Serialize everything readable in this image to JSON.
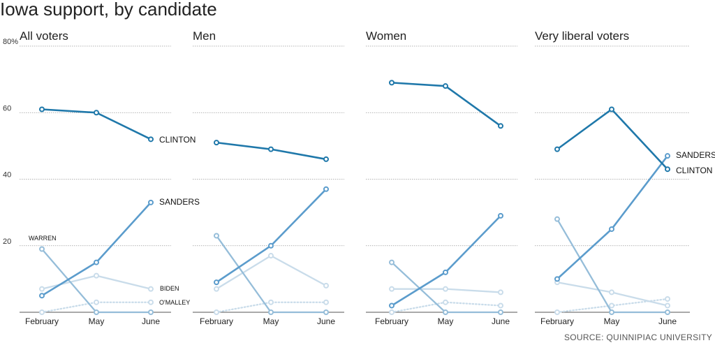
{
  "title": "Iowa support, by candidate",
  "source": "SOURCE: QUINNIPIAC UNIVERSITY",
  "y_unit_label": "80%",
  "colors": {
    "CLINTON": "#1f78aa",
    "SANDERS": "#5b9ccc",
    "WARREN": "#95bdd9",
    "BIDEN": "#c9dcea",
    "O'MALLEY": "#c9dcea"
  },
  "chart_data": [
    {
      "type": "line",
      "title": "All voters",
      "x": [
        "February",
        "May",
        "June"
      ],
      "ylim": [
        0,
        80
      ],
      "yticks": [
        20,
        40,
        60,
        80
      ],
      "grid": true,
      "series": [
        {
          "name": "CLINTON",
          "values": [
            61,
            60,
            52
          ],
          "style": "solid",
          "label": "CLINTON"
        },
        {
          "name": "SANDERS",
          "values": [
            5,
            15,
            33
          ],
          "style": "solid",
          "label": "SANDERS"
        },
        {
          "name": "WARREN",
          "values": [
            19,
            0,
            0
          ],
          "style": "solid",
          "label": "WARREN"
        },
        {
          "name": "BIDEN",
          "values": [
            7,
            11,
            7
          ],
          "style": "solid",
          "label": "BIDEN"
        },
        {
          "name": "O'MALLEY",
          "values": [
            0,
            3,
            3
          ],
          "style": "dotted",
          "label": "O'MALLEY"
        }
      ]
    },
    {
      "type": "line",
      "title": "Men",
      "x": [
        "February",
        "May",
        "June"
      ],
      "ylim": [
        0,
        80
      ],
      "grid": true,
      "series": [
        {
          "name": "CLINTON",
          "values": [
            51,
            49,
            46
          ],
          "style": "solid"
        },
        {
          "name": "SANDERS",
          "values": [
            9,
            20,
            37
          ],
          "style": "solid"
        },
        {
          "name": "WARREN",
          "values": [
            23,
            0,
            0
          ],
          "style": "solid"
        },
        {
          "name": "BIDEN",
          "values": [
            7,
            17,
            8
          ],
          "style": "solid"
        },
        {
          "name": "O'MALLEY",
          "values": [
            0,
            3,
            3
          ],
          "style": "dotted"
        }
      ]
    },
    {
      "type": "line",
      "title": "Women",
      "x": [
        "February",
        "May",
        "June"
      ],
      "ylim": [
        0,
        80
      ],
      "grid": true,
      "series": [
        {
          "name": "CLINTON",
          "values": [
            69,
            68,
            56
          ],
          "style": "solid"
        },
        {
          "name": "SANDERS",
          "values": [
            2,
            12,
            29
          ],
          "style": "solid"
        },
        {
          "name": "WARREN",
          "values": [
            15,
            0,
            0
          ],
          "style": "solid"
        },
        {
          "name": "BIDEN",
          "values": [
            7,
            7,
            6
          ],
          "style": "solid"
        },
        {
          "name": "O'MALLEY",
          "values": [
            0,
            3,
            2
          ],
          "style": "dotted"
        }
      ]
    },
    {
      "type": "line",
      "title": "Very liberal voters",
      "x": [
        "February",
        "May",
        "June"
      ],
      "ylim": [
        0,
        80
      ],
      "grid": true,
      "series": [
        {
          "name": "CLINTON",
          "values": [
            49,
            61,
            43
          ],
          "style": "solid",
          "label": "CLINTON"
        },
        {
          "name": "SANDERS",
          "values": [
            10,
            25,
            47
          ],
          "style": "solid",
          "label": "SANDERS"
        },
        {
          "name": "WARREN",
          "values": [
            28,
            0,
            0
          ],
          "style": "solid"
        },
        {
          "name": "BIDEN",
          "values": [
            9,
            6,
            2
          ],
          "style": "solid"
        },
        {
          "name": "O'MALLEY",
          "values": [
            0,
            2,
            4
          ],
          "style": "dotted"
        }
      ]
    }
  ]
}
